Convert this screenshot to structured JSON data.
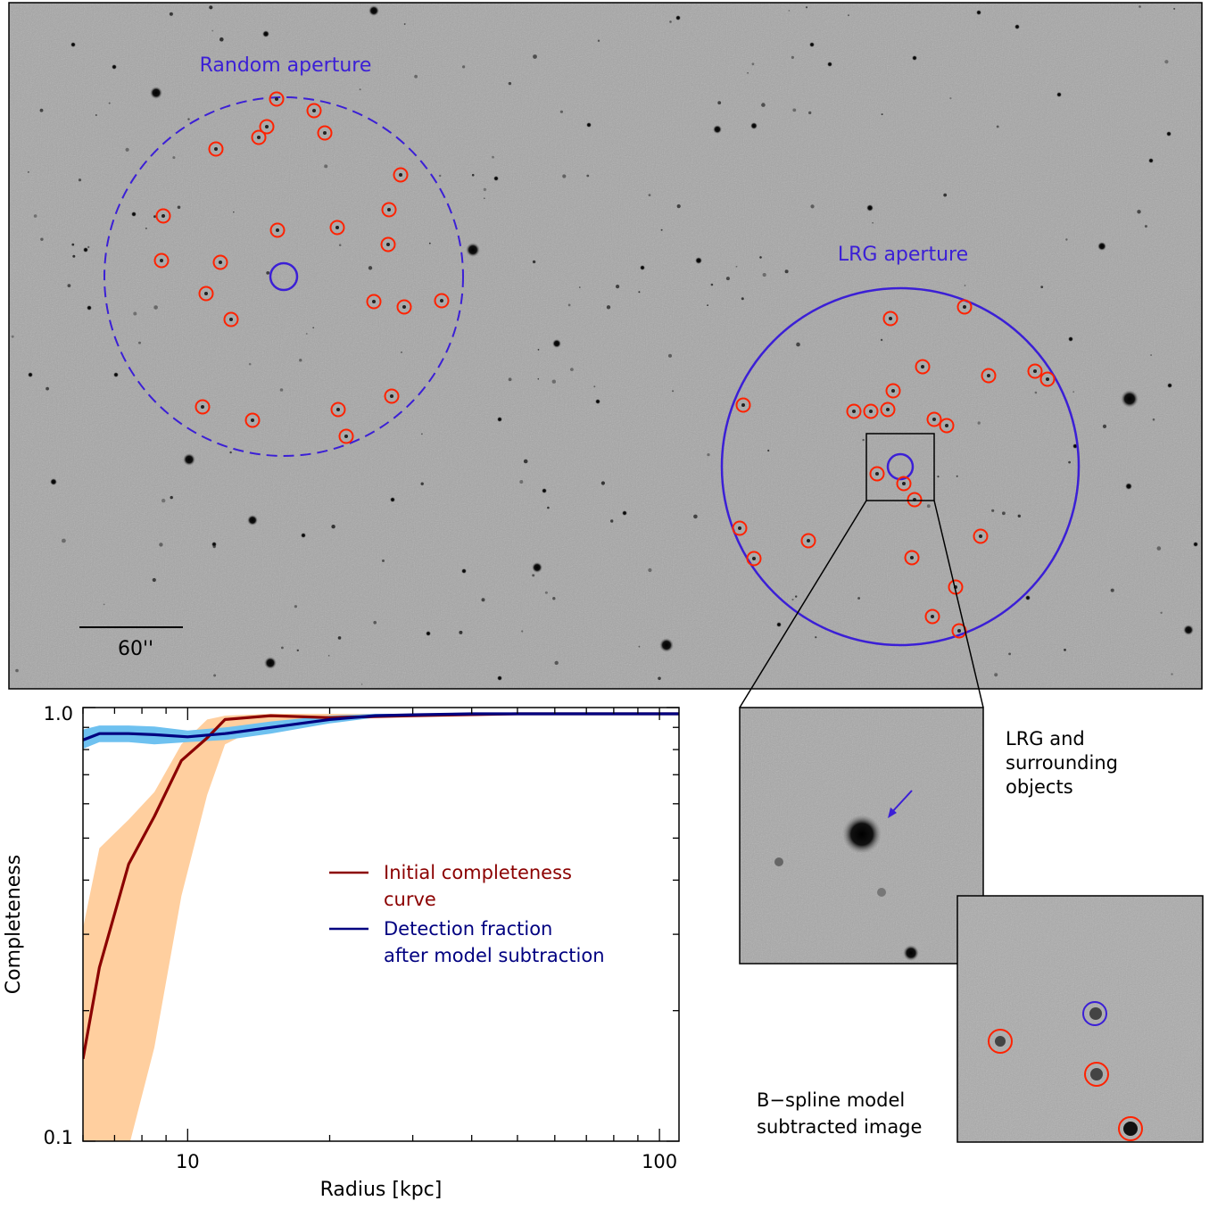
{
  "sky_image": {
    "random_aperture_label": "Random aperture",
    "lrg_aperture_label": "LRG aperture",
    "scale_bar_label": "60''"
  },
  "insets": {
    "top_label_lines": [
      "LRG and",
      "surrounding",
      "objects"
    ],
    "bottom_label_lines": [
      "B−spline model",
      "subtracted image"
    ]
  },
  "colors": {
    "aperture_blue": "#3b1fd6",
    "marker_red": "#ff2200",
    "initial_curve": "#8b0000",
    "initial_band": "#ffcf9f",
    "detection_curve": "#000080",
    "detection_band": "#6ec1f0",
    "sky_background": "#a6a6a6"
  },
  "chart_data": {
    "type": "line",
    "xlabel": "Radius [kpc]",
    "ylabel": "Completeness",
    "xscale": "log",
    "yscale": "log",
    "xlim": [
      6.0,
      110
    ],
    "ylim": [
      0.1,
      1.0
    ],
    "xticklabels": [
      "10",
      "100"
    ],
    "yticklabels": [
      "0.1",
      "1.0"
    ],
    "legend_position": "center-right",
    "series": [
      {
        "name": "Initial completeness curve",
        "legend_lines": [
          "Initial completeness",
          "curve"
        ],
        "color": "#8b0000",
        "x": [
          6.0,
          6.5,
          7.5,
          8.5,
          9.7,
          11.0,
          12.0,
          15.0,
          20.0,
          30.0,
          50.0,
          80.0,
          110.0
        ],
        "y": [
          0.16,
          0.26,
          0.45,
          0.58,
          0.78,
          0.88,
          0.97,
          0.99,
          0.98,
          0.99,
          1.0,
          1.0,
          1.0
        ],
        "band_upper": [
          0.32,
          0.49,
          0.57,
          0.66,
          0.85,
          0.97,
          0.99,
          1.0,
          1.0,
          1.0,
          1.0,
          1.0,
          1.0
        ],
        "band_lower": [
          0.1,
          0.1,
          0.1,
          0.17,
          0.38,
          0.65,
          0.85,
          0.96,
          0.97,
          0.99,
          1.0,
          1.0,
          1.0
        ]
      },
      {
        "name": "Detection fraction after model subtraction",
        "legend_lines": [
          "Detection fraction",
          "after model subtraction"
        ],
        "color": "#000080",
        "x": [
          6.0,
          6.5,
          7.5,
          8.5,
          10.0,
          12.0,
          15.0,
          20.0,
          25.0,
          30.0,
          40.0,
          60.0,
          80.0,
          110.0
        ],
        "y": [
          0.87,
          0.9,
          0.9,
          0.895,
          0.885,
          0.9,
          0.93,
          0.97,
          0.99,
          0.995,
          1.0,
          1.0,
          1.0,
          1.0
        ],
        "band_upper": [
          0.92,
          0.94,
          0.94,
          0.935,
          0.915,
          0.93,
          0.96,
          0.99,
          1.0,
          1.0,
          1.0,
          1.0,
          1.0,
          1.0
        ],
        "band_lower": [
          0.83,
          0.86,
          0.86,
          0.85,
          0.86,
          0.87,
          0.9,
          0.95,
          0.98,
          0.99,
          1.0,
          1.0,
          1.0,
          1.0
        ]
      }
    ]
  }
}
